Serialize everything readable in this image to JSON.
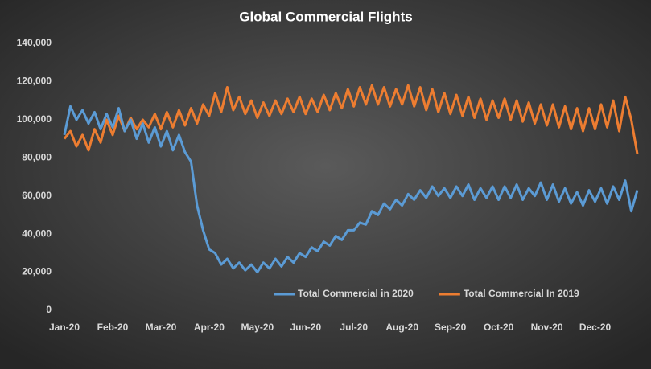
{
  "chart_data": {
    "type": "line",
    "title": "Global  Commercial  Flights",
    "categories": [
      "Jan-20",
      null,
      null,
      null,
      null,
      null,
      null,
      null,
      "Feb-20",
      null,
      null,
      null,
      null,
      null,
      null,
      null,
      "Mar-20",
      null,
      null,
      null,
      null,
      null,
      null,
      null,
      "Apr-20",
      null,
      null,
      null,
      null,
      null,
      null,
      null,
      "May-20",
      null,
      null,
      null,
      null,
      null,
      null,
      null,
      "Jun-20",
      null,
      null,
      null,
      null,
      null,
      null,
      null,
      "Jul-20",
      null,
      null,
      null,
      null,
      null,
      null,
      null,
      "Aug-20",
      null,
      null,
      null,
      null,
      null,
      null,
      null,
      "Sep-20",
      null,
      null,
      null,
      null,
      null,
      null,
      null,
      "Oct-20",
      null,
      null,
      null,
      null,
      null,
      null,
      null,
      "Nov-20",
      null,
      null,
      null,
      null,
      null,
      null,
      null,
      "Dec-20",
      null,
      null,
      null,
      null,
      null,
      null,
      null
    ],
    "series": [
      {
        "name": "Total Commercial in 2020",
        "color": "#5b9bd5",
        "values": [
          92000,
          107000,
          100000,
          105000,
          98000,
          104000,
          95000,
          103000,
          96000,
          106000,
          94000,
          100000,
          90000,
          98000,
          88000,
          96000,
          86000,
          94000,
          84000,
          92000,
          83000,
          78000,
          55000,
          42000,
          32000,
          30000,
          24000,
          27000,
          22000,
          25000,
          21000,
          24000,
          20000,
          25000,
          22000,
          27000,
          23000,
          28000,
          25000,
          30000,
          28000,
          33000,
          31000,
          36000,
          34000,
          39000,
          37000,
          42000,
          42000,
          46000,
          45000,
          52000,
          50000,
          56000,
          53000,
          58000,
          55000,
          61000,
          58000,
          63000,
          59000,
          65000,
          60000,
          64000,
          59000,
          65000,
          60000,
          66000,
          58000,
          64000,
          59000,
          65000,
          58000,
          65000,
          59000,
          66000,
          58000,
          64000,
          60000,
          67000,
          58000,
          66000,
          57000,
          64000,
          56000,
          62000,
          55000,
          63000,
          57000,
          64000,
          56000,
          65000,
          58000,
          68000,
          52000,
          63000
        ]
      },
      {
        "name": "Total Commercial In 2019",
        "color": "#ed7d31",
        "values": [
          90000,
          94000,
          86000,
          92000,
          84000,
          95000,
          88000,
          100000,
          92000,
          102000,
          94000,
          101000,
          95000,
          100000,
          96000,
          103000,
          95000,
          104000,
          96000,
          105000,
          97000,
          106000,
          98000,
          108000,
          102000,
          114000,
          104000,
          117000,
          105000,
          112000,
          103000,
          110000,
          101000,
          109000,
          102000,
          110000,
          103000,
          111000,
          104000,
          112000,
          103000,
          111000,
          104000,
          113000,
          105000,
          114000,
          106000,
          116000,
          107000,
          117000,
          108000,
          118000,
          108000,
          117000,
          107000,
          116000,
          108000,
          118000,
          107000,
          117000,
          105000,
          116000,
          104000,
          114000,
          103000,
          113000,
          102000,
          112000,
          101000,
          111000,
          100000,
          110000,
          101000,
          111000,
          100000,
          110000,
          99000,
          109000,
          98000,
          108000,
          97000,
          108000,
          96000,
          107000,
          95000,
          106000,
          94000,
          106000,
          95000,
          108000,
          96000,
          110000,
          94000,
          112000,
          100000,
          82000
        ]
      }
    ],
    "ylim": [
      0,
      140000
    ],
    "yticks": [
      0,
      {
        "value": 20000,
        "label": "20,000"
      },
      {
        "value": 40000,
        "label": "40,000"
      },
      {
        "value": 60000,
        "label": "60,000"
      },
      {
        "value": 80000,
        "label": "80,000"
      },
      {
        "value": 100000,
        "label": "100,000"
      },
      {
        "value": 120000,
        "label": "120,000"
      },
      {
        "value": 140000,
        "label": "140,000"
      }
    ],
    "grid": false,
    "legend": "bottom"
  }
}
